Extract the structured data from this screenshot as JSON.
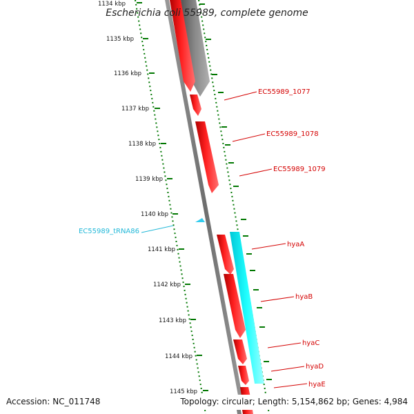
{
  "title": "Escherichia coli 55989, complete genome",
  "footer": {
    "accession": "Accession: NC_011748",
    "summary": "Topology: circular; Length: 5,154,862 bp; Genes: 4,984"
  },
  "ruler": {
    "ticks": [
      "1134 kbp",
      "1135 kbp",
      "1136 kbp",
      "1137 kbp",
      "1138 kbp",
      "1139 kbp",
      "1140 kbp",
      "1141 kbp",
      "1142 kbp",
      "1143 kbp",
      "1144 kbp",
      "1145 kbp"
    ]
  },
  "features": [
    {
      "label": "EC55989_1077",
      "type": "gene"
    },
    {
      "label": "EC55989_1078",
      "type": "gene"
    },
    {
      "label": "EC55989_1079",
      "type": "gene"
    },
    {
      "label": "EC55989_tRNA86",
      "type": "trna"
    },
    {
      "label": "hyaA",
      "type": "gene"
    },
    {
      "label": "hyaB",
      "type": "gene"
    },
    {
      "label": "hyaC",
      "type": "gene"
    },
    {
      "label": "hyaD",
      "type": "gene"
    },
    {
      "label": "hyaE",
      "type": "gene"
    }
  ],
  "colors": {
    "gene": "#ff0000",
    "trna": "#33ccee",
    "operon": "#00ffff",
    "backbone": "#808080",
    "ruler": "#007700",
    "label_gene": "#d40000",
    "label_trna": "#22b8d8"
  }
}
